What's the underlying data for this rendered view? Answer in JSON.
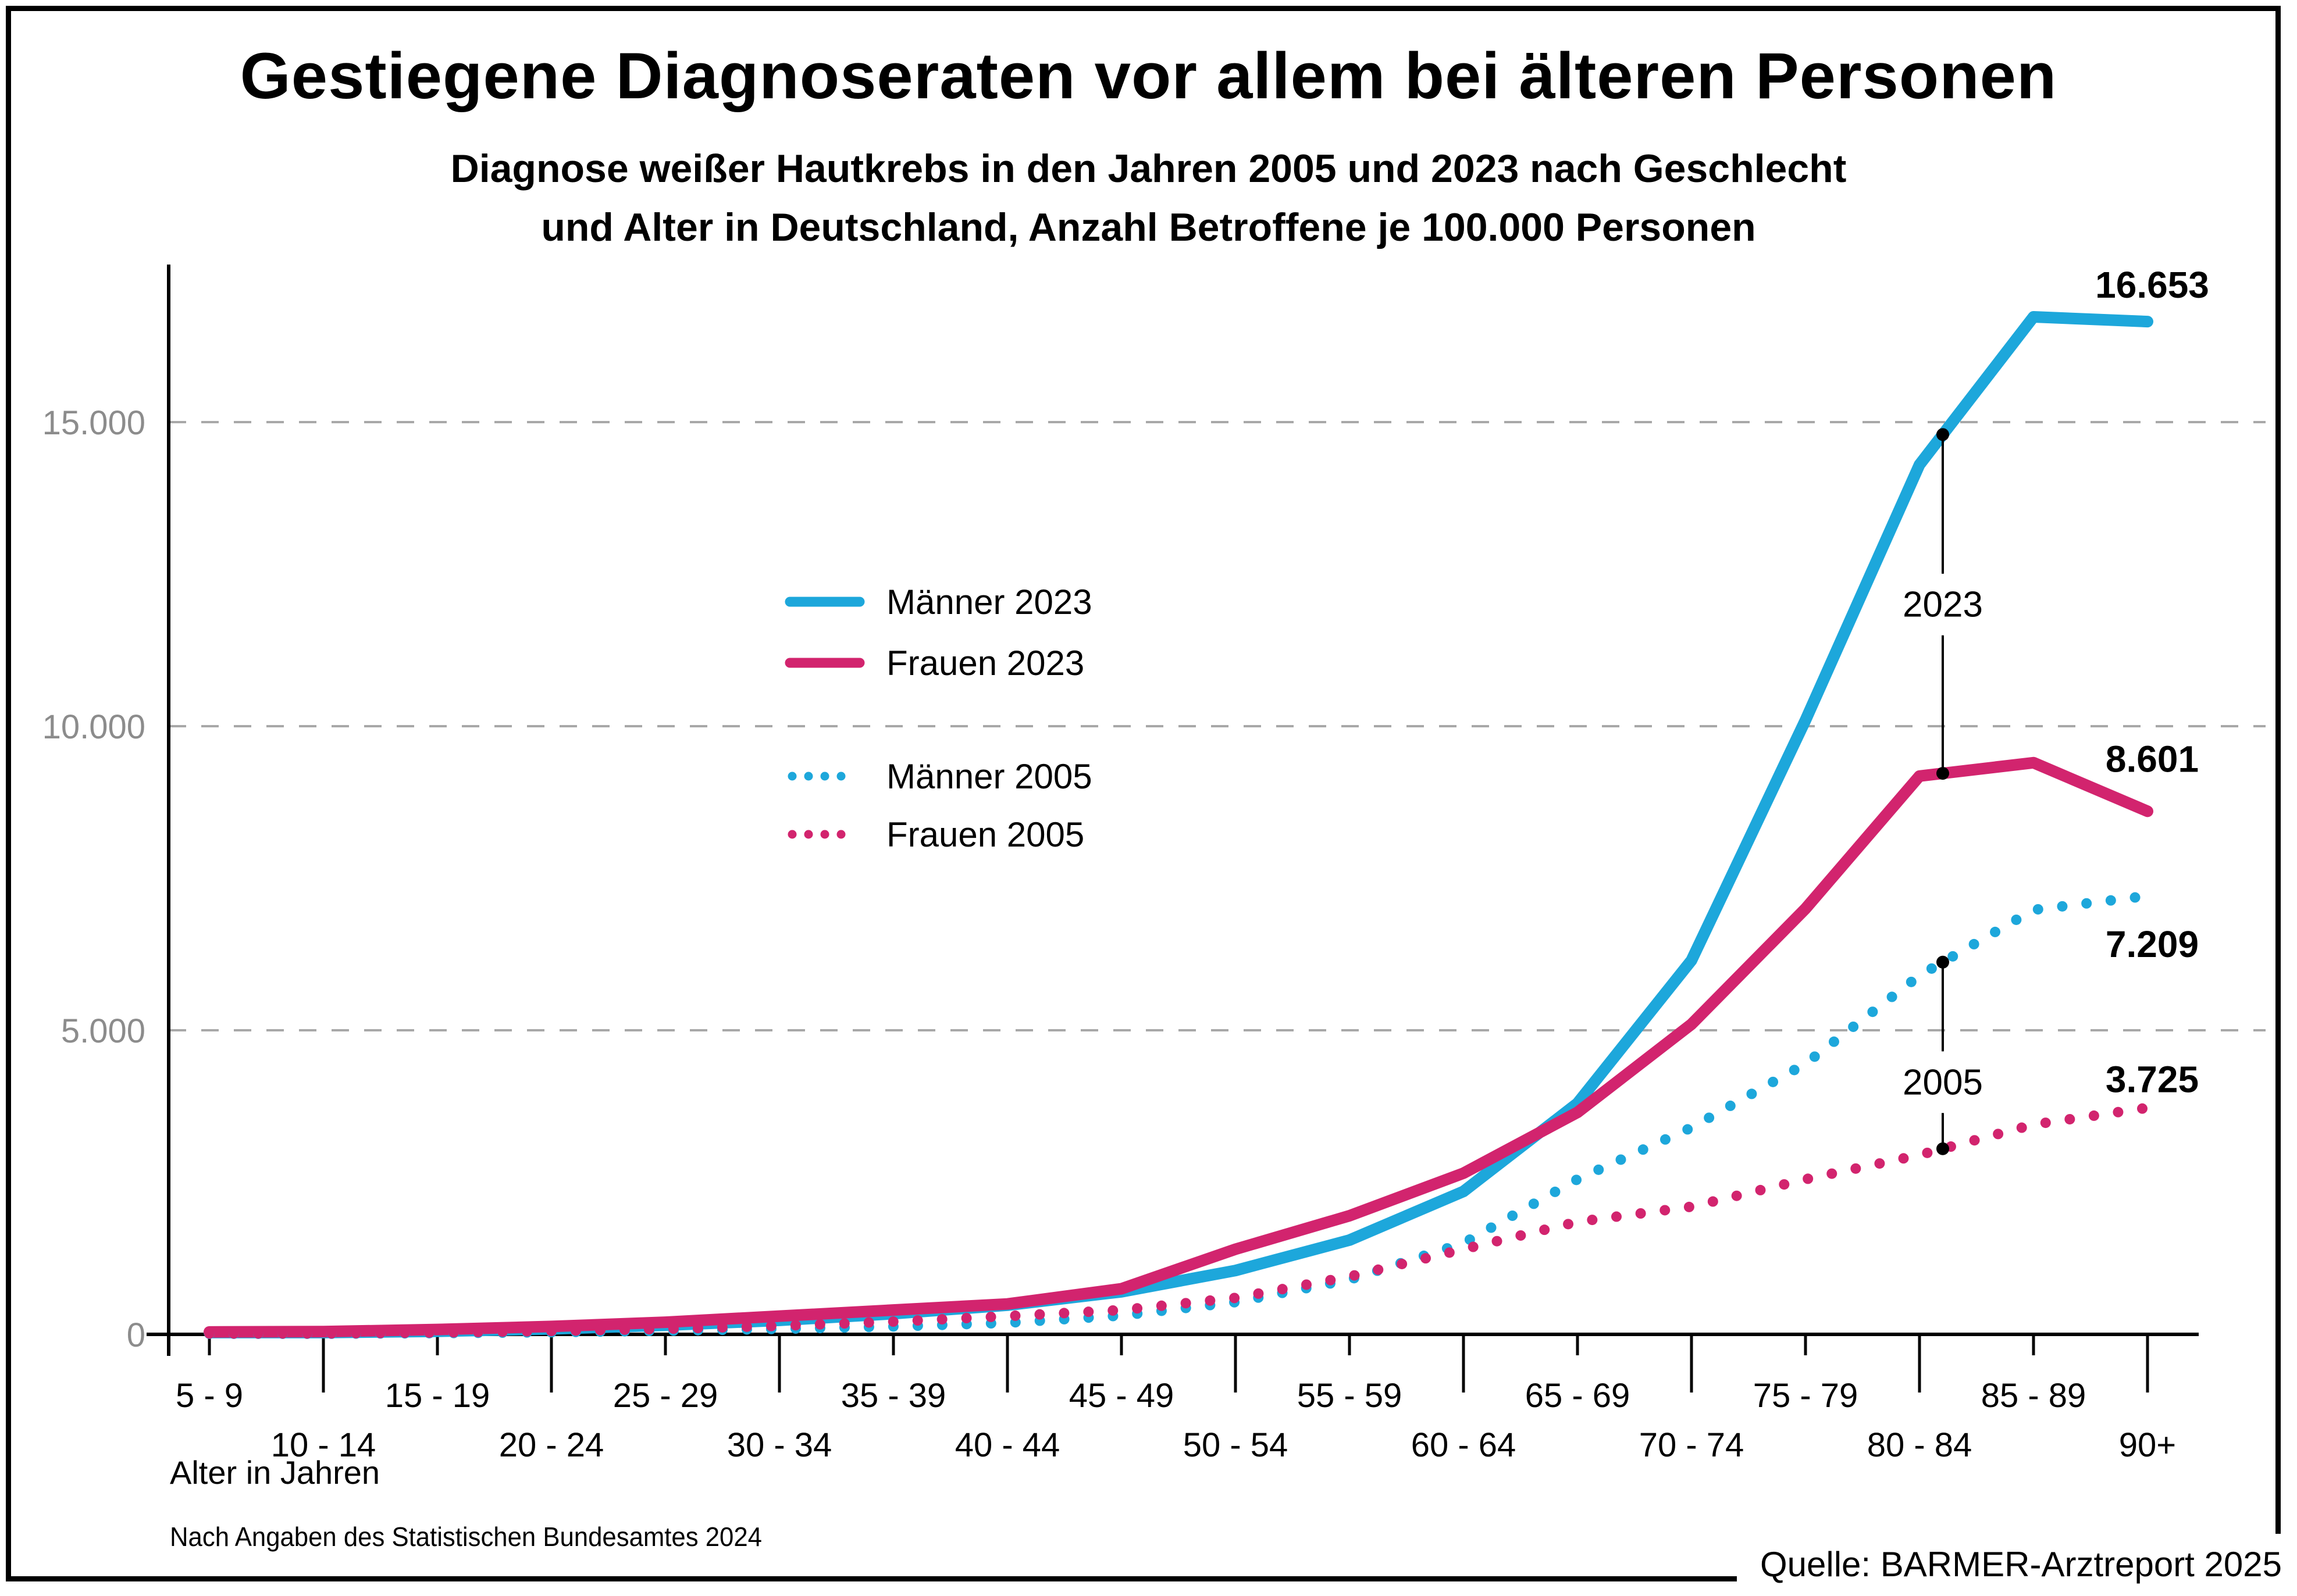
{
  "header": {
    "title": "Gestiegene Diagnoseraten vor allem bei älteren Personen",
    "subtitle_line1": "Diagnose weißer Hautkrebs in den Jahren 2005 und 2023 nach Geschlecht",
    "subtitle_line2": "und Alter in Deutschland, Anzahl Betroffene je 100.000 Personen"
  },
  "chart_data": {
    "type": "line",
    "title": "Diagnose weißer Hautkrebs in den Jahren 2005 und 2023 nach Geschlecht und Alter in Deutschland, Anzahl Betroffene je 100.000 Personen",
    "xlabel": "Alter in Jahren",
    "ylabel": "",
    "ylim": [
      0,
      17600
    ],
    "grid": "horizontal-dashed",
    "legend_position": "inside-upper-left",
    "categories": [
      "5 - 9",
      "10 - 14",
      "15 - 19",
      "20 - 24",
      "25 - 29",
      "30 - 34",
      "35 - 39",
      "40 - 44",
      "45 - 49",
      "50 - 54",
      "55 - 59",
      "60 - 64",
      "65 - 69",
      "70 - 74",
      "75 - 79",
      "80 - 84",
      "85 - 89",
      "90+"
    ],
    "y_ticks": [
      {
        "value": 0,
        "label": "0"
      },
      {
        "value": 5000,
        "label": "5.000"
      },
      {
        "value": 10000,
        "label": "10.000"
      },
      {
        "value": 15000,
        "label": "15.000"
      }
    ],
    "series": [
      {
        "name": "Männer 2023",
        "style": "solid",
        "color": "#1DA7DB",
        "values": [
          30,
          30,
          50,
          90,
          150,
          230,
          340,
          480,
          700,
          1050,
          1550,
          2350,
          3800,
          6150,
          10100,
          14300,
          16730,
          16653
        ],
        "end_label": "16.653"
      },
      {
        "name": "Frauen 2023",
        "style": "solid",
        "color": "#D2246E",
        "values": [
          40,
          45,
          80,
          130,
          200,
          300,
          400,
          500,
          750,
          1400,
          1950,
          2650,
          3650,
          5100,
          7000,
          9180,
          9400,
          8601
        ],
        "end_label": "8.601"
      },
      {
        "name": "Männer 2005",
        "style": "dotted",
        "color": "#1DA7DB",
        "values": [
          10,
          10,
          20,
          35,
          60,
          90,
          130,
          190,
          310,
          530,
          900,
          1500,
          2550,
          3400,
          4450,
          5900,
          6980,
          7209
        ],
        "end_label": "7.209"
      },
      {
        "name": "Frauen 2005",
        "style": "dotted",
        "color": "#D2246E",
        "values": [
          15,
          15,
          30,
          55,
          90,
          140,
          210,
          300,
          400,
          600,
          950,
          1400,
          1850,
          2100,
          2550,
          2950,
          3450,
          3725
        ],
        "end_label": "3.725"
      }
    ],
    "annotations": [
      {
        "label": "2023",
        "from_series": 0,
        "to_series": 1,
        "at_category": "80 - 84"
      },
      {
        "label": "2005",
        "from_series": 2,
        "to_series": 3,
        "at_category": "80 - 84"
      }
    ]
  },
  "footer": {
    "source_note": "Nach Angaben des Statistischen Bundesamtes 2024",
    "source": "Quelle: BARMER-Arztreport 2025"
  },
  "colors": {
    "maenner": "#1DA7DB",
    "frauen": "#D2246E",
    "grid": "#A8A8A8",
    "y_axis_labels": "#8C8C8C",
    "text": "#000000"
  }
}
